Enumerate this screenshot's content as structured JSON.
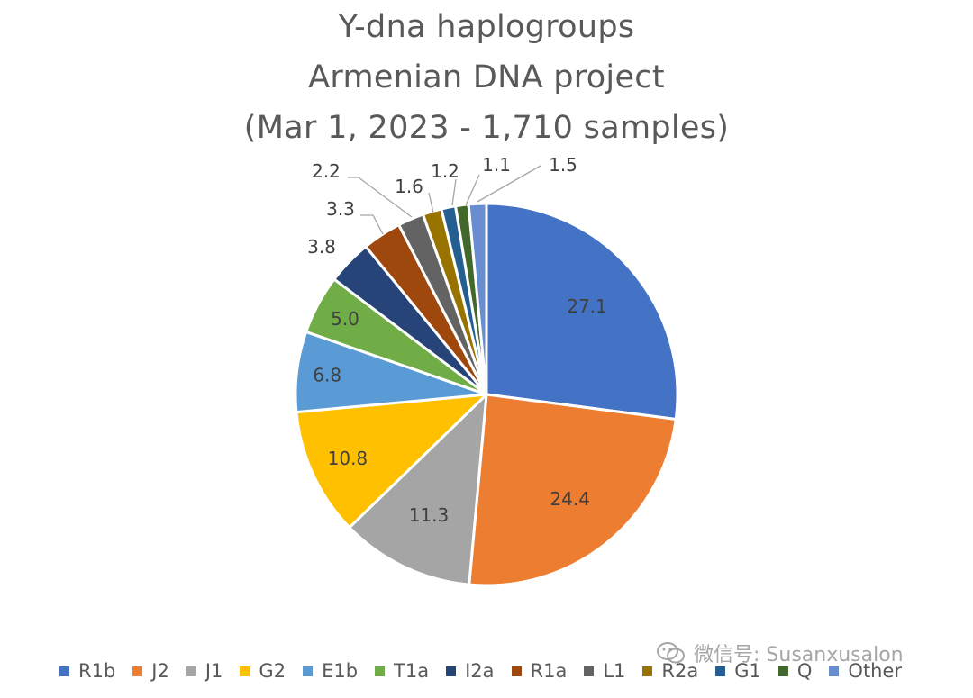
{
  "chart_data": {
    "type": "pie",
    "title_lines": [
      "Y-dna haplogroups",
      "Armenian DNA project",
      "(Mar 1, 2023 - 1,710 samples)"
    ],
    "slices": [
      {
        "label": "R1b",
        "value": 27.1,
        "display": "27.1",
        "color": "#4472C4"
      },
      {
        "label": "J2",
        "value": 24.4,
        "display": "24.4",
        "color": "#ED7D31"
      },
      {
        "label": "J1",
        "value": 11.3,
        "display": "11.3",
        "color": "#A5A5A5"
      },
      {
        "label": "G2",
        "value": 10.8,
        "display": "10.8",
        "color": "#FFC000"
      },
      {
        "label": "E1b",
        "value": 6.8,
        "display": "6.8",
        "color": "#5B9BD5"
      },
      {
        "label": "T1a",
        "value": 5.0,
        "display": "5.0",
        "color": "#70AD47"
      },
      {
        "label": "I2a",
        "value": 3.8,
        "display": "3.8",
        "color": "#264478"
      },
      {
        "label": "R1a",
        "value": 3.3,
        "display": "3.3",
        "color": "#9E480E"
      },
      {
        "label": "L1",
        "value": 2.2,
        "display": "2.2",
        "color": "#636363"
      },
      {
        "label": "R2a",
        "value": 1.6,
        "display": "1.6",
        "color": "#997300"
      },
      {
        "label": "G1",
        "value": 1.2,
        "display": "1.2",
        "color": "#255E91"
      },
      {
        "label": "Q",
        "value": 1.1,
        "display": "1.1",
        "color": "#43682B"
      },
      {
        "label": "Other",
        "value": 1.5,
        "display": "1.5",
        "color": "#698ED0"
      }
    ],
    "legend_position": "bottom"
  },
  "watermark": {
    "icon": "wechat-icon",
    "text": "微信号: Susanxusalon"
  }
}
